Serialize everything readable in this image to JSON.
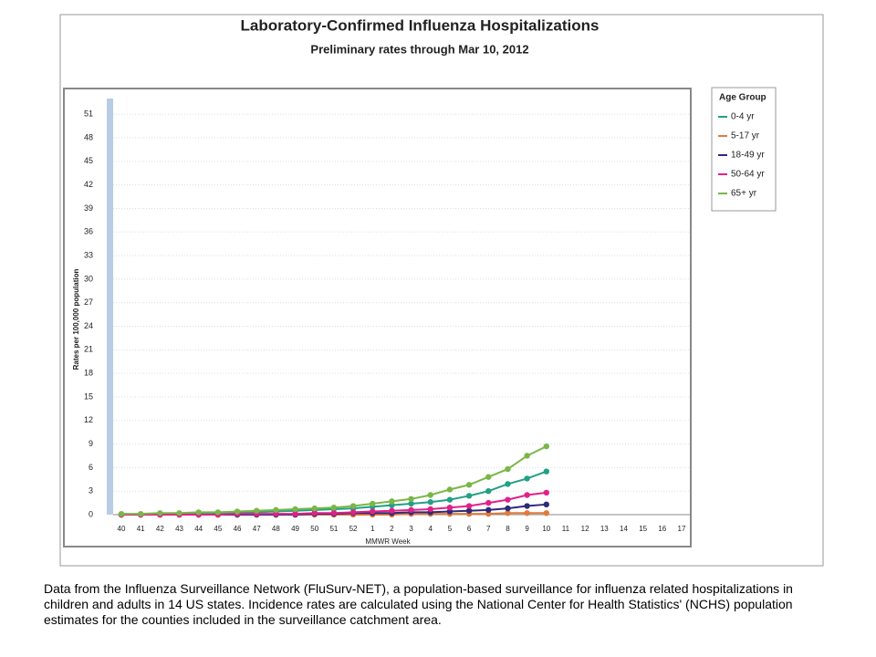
{
  "chart_data": {
    "type": "line",
    "title": "Laboratory-Confirmed Influenza Hospitalizations",
    "subtitle": "Preliminary rates through Mar 10, 2012",
    "y_label": "Rates per 100,000 population",
    "x_label": "MMWR Week",
    "legend_title": "Age Group",
    "legend": "right",
    "grid": true,
    "categories": [
      "40",
      "41",
      "42",
      "43",
      "44",
      "45",
      "46",
      "47",
      "48",
      "49",
      "50",
      "51",
      "52",
      "1",
      "2",
      "3",
      "4",
      "5",
      "6",
      "7",
      "8",
      "9",
      "10",
      "11",
      "12",
      "13",
      "14",
      "15",
      "16",
      "17"
    ],
    "ylim": [
      0,
      53
    ],
    "yticks": [
      0,
      3,
      6,
      9,
      12,
      15,
      18,
      21,
      24,
      27,
      30,
      33,
      36,
      39,
      42,
      45,
      48,
      51
    ],
    "series": [
      {
        "name": "0-4 yr",
        "color": "#23a085",
        "values": [
          0.0,
          0.0,
          0.1,
          0.1,
          0.1,
          0.2,
          0.2,
          0.3,
          0.4,
          0.5,
          0.6,
          0.7,
          0.8,
          1.0,
          1.2,
          1.4,
          1.6,
          1.9,
          2.4,
          3.0,
          3.9,
          4.6,
          5.5,
          null,
          null,
          null,
          null,
          null,
          null,
          null
        ]
      },
      {
        "name": "5-17 yr",
        "color": "#e07b39",
        "values": [
          0.0,
          0.0,
          0.0,
          0.0,
          0.0,
          0.0,
          0.0,
          0.0,
          0.0,
          0.0,
          0.0,
          0.0,
          0.0,
          0.0,
          0.0,
          0.1,
          0.1,
          0.1,
          0.1,
          0.1,
          0.2,
          0.2,
          0.2,
          null,
          null,
          null,
          null,
          null,
          null,
          null
        ]
      },
      {
        "name": "18-49 yr",
        "color": "#2e2a7a",
        "values": [
          0.0,
          0.0,
          0.0,
          0.0,
          0.0,
          0.0,
          0.0,
          0.0,
          0.0,
          0.0,
          0.1,
          0.1,
          0.2,
          0.2,
          0.2,
          0.3,
          0.3,
          0.4,
          0.5,
          0.6,
          0.8,
          1.1,
          1.3,
          null,
          null,
          null,
          null,
          null,
          null,
          null
        ]
      },
      {
        "name": "50-64 yr",
        "color": "#e0218a",
        "values": [
          0.0,
          0.0,
          0.0,
          0.0,
          0.0,
          0.0,
          0.1,
          0.1,
          0.1,
          0.1,
          0.2,
          0.2,
          0.3,
          0.4,
          0.5,
          0.6,
          0.7,
          0.9,
          1.1,
          1.5,
          1.9,
          2.5,
          2.8,
          null,
          null,
          null,
          null,
          null,
          null,
          null
        ]
      },
      {
        "name": "65+ yr",
        "color": "#7ab648",
        "values": [
          0.1,
          0.1,
          0.2,
          0.2,
          0.3,
          0.3,
          0.4,
          0.5,
          0.6,
          0.7,
          0.8,
          0.9,
          1.1,
          1.4,
          1.7,
          2.0,
          2.5,
          3.2,
          3.8,
          4.8,
          5.8,
          7.5,
          8.7,
          null,
          null,
          null,
          null,
          null,
          null,
          null
        ]
      }
    ]
  },
  "footnote": "Data from the Influenza Surveillance Network (FluSurv-NET), a population-based surveillance for influenza related hospitalizations in children and adults in 14 US states. Incidence rates are calculated using the National Center for Health Statistics' (NCHS) population estimates for the counties included in the surveillance catchment area."
}
